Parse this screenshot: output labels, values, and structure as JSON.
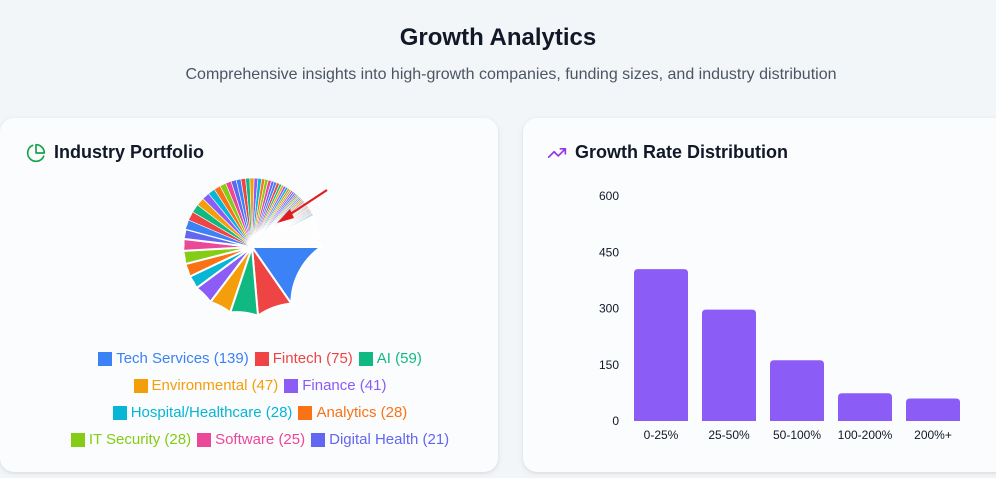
{
  "header": {
    "title": "Growth Analytics",
    "subtitle": "Comprehensive insights into high-growth companies, funding sizes, and industry distribution"
  },
  "industry_card": {
    "title": "Industry Portfolio",
    "icon": "pie-chart-icon",
    "accent": "#16a34a"
  },
  "growth_card": {
    "title": "Growth Rate Distribution",
    "icon": "trending-up-icon",
    "accent": "#9333ea"
  },
  "chart_data": [
    {
      "type": "pie",
      "title": "Industry Portfolio",
      "legend": [
        {
          "label": "Tech Services (139)",
          "name": "Tech Services",
          "value": 139,
          "color": "#3b82f6"
        },
        {
          "label": "Fintech (75)",
          "name": "Fintech",
          "value": 75,
          "color": "#ef4444"
        },
        {
          "label": "AI (59)",
          "name": "AI",
          "value": 59,
          "color": "#10b981"
        },
        {
          "label": "Environmental (47)",
          "name": "Environmental",
          "value": 47,
          "color": "#f59e0b"
        },
        {
          "label": "Finance (41)",
          "name": "Finance",
          "value": 41,
          "color": "#8b5cf6"
        },
        {
          "label": "Hospital/Healthcare (28)",
          "name": "Hospital/Healthcare",
          "value": 28,
          "color": "#06b6d4"
        },
        {
          "label": "Analytics (28)",
          "name": "Analytics",
          "value": 28,
          "color": "#f97316"
        },
        {
          "label": "IT Security (28)",
          "name": "IT Security",
          "value": 28,
          "color": "#84cc16"
        },
        {
          "label": "Software (25)",
          "name": "Software",
          "value": 25,
          "color": "#ec4899"
        },
        {
          "label": "Digital Health (21)",
          "name": "Digital Health",
          "value": 21,
          "color": "#6366f1"
        }
      ],
      "legend_rows": [
        [
          0,
          1,
          2
        ],
        [
          3,
          4
        ],
        [
          5,
          6
        ],
        [
          7,
          8,
          9
        ]
      ],
      "small_slice_values": [
        20,
        19,
        18,
        17,
        16,
        15,
        14,
        13,
        12,
        11,
        10,
        10,
        9,
        9,
        8,
        8,
        7,
        7,
        7,
        6,
        6,
        6,
        5,
        5,
        5,
        5,
        4,
        4,
        4,
        4,
        4,
        3,
        3,
        3,
        3,
        3,
        3,
        3,
        3,
        2,
        2,
        2,
        2,
        2,
        2,
        2,
        2,
        2,
        2,
        2,
        2,
        2,
        2,
        2,
        2,
        2,
        1,
        1,
        1,
        1,
        1,
        1,
        1,
        1,
        1,
        1,
        1,
        1,
        1,
        1,
        1,
        1,
        1,
        1,
        1,
        1,
        1,
        1,
        1,
        1,
        1,
        1,
        1,
        1,
        1,
        1,
        1,
        1,
        1,
        1,
        1,
        1,
        1,
        1,
        1,
        1,
        1,
        1,
        1,
        1,
        1,
        1,
        1,
        1,
        1,
        1,
        1,
        1,
        1,
        1,
        1,
        1,
        1,
        1,
        1,
        1,
        1,
        1,
        1,
        1,
        1,
        1,
        1,
        1,
        1
      ],
      "small_slice_colors": [
        "#3b82f6",
        "#ef4444",
        "#10b981",
        "#f59e0b",
        "#8b5cf6",
        "#06b6d4",
        "#f97316",
        "#84cc16",
        "#ec4899",
        "#6366f1"
      ],
      "annotation": "arrow pointing to Tech Services slice",
      "annotation_color": "#e11d1d"
    },
    {
      "type": "bar",
      "title": "Growth Rate Distribution",
      "categories": [
        "0-25%",
        "25-50%",
        "50-100%",
        "100-200%",
        "200%+"
      ],
      "values": [
        405,
        297,
        162,
        74,
        60
      ],
      "yticks": [
        "0",
        "150",
        "300",
        "450",
        "600"
      ],
      "ylim": [
        0,
        600
      ],
      "color": "#8b5cf6",
      "grid": false
    }
  ]
}
